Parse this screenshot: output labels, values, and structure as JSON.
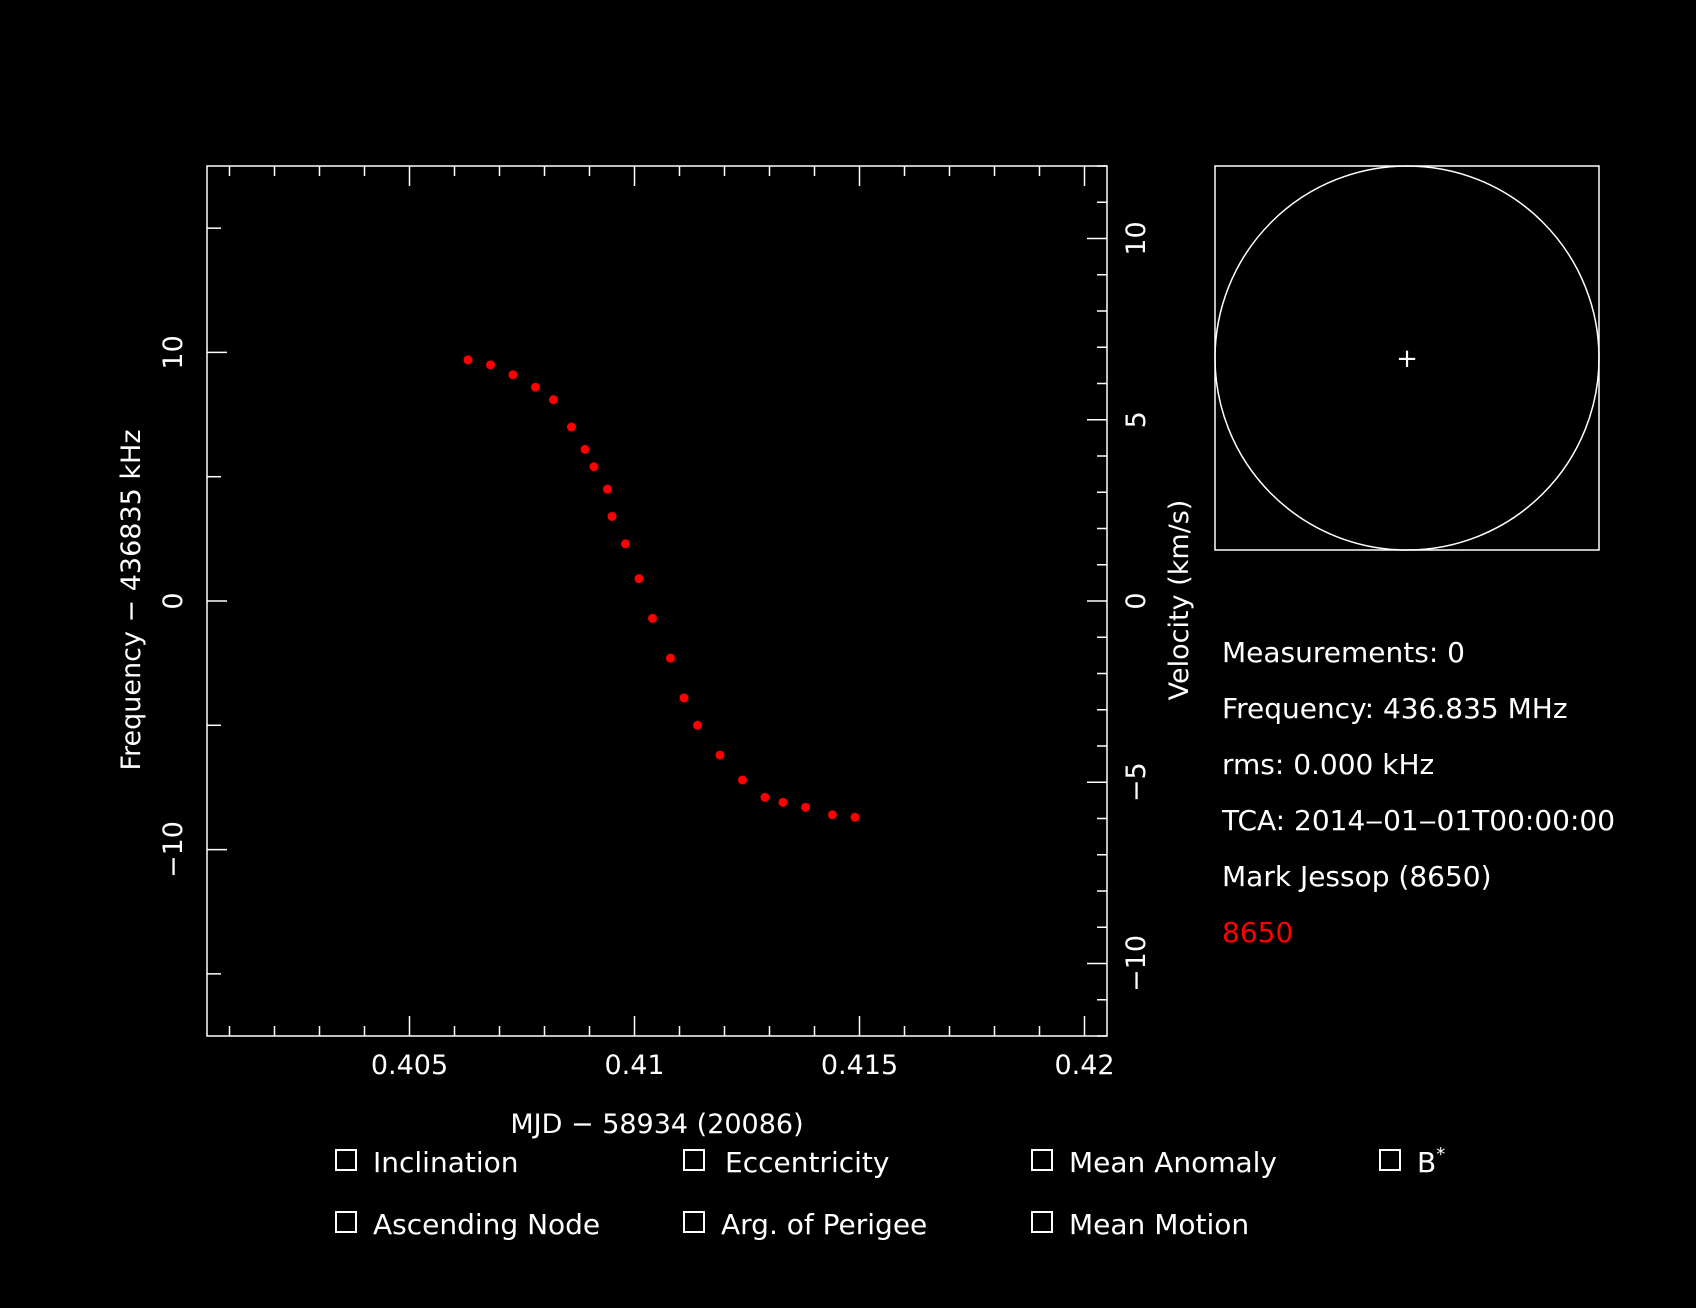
{
  "colors": {
    "background": "#000000",
    "foreground": "#ffffff",
    "accent": "#ff0000"
  },
  "chart_data": {
    "type": "scatter",
    "title": "",
    "xlabel": "MJD − 58934 (20086)",
    "ylabel": "Frequency − 436835 kHz",
    "ylabel_right": "Velocity (km/s)",
    "xlim": [
      0.4005,
      0.4205
    ],
    "ylim": [
      -17.5,
      17.5
    ],
    "ylim_right": [
      -12.0,
      12.0
    ],
    "x_ticks": [
      0.405,
      0.41,
      0.415,
      0.42
    ],
    "x_tick_labels": [
      "0.405",
      "0.41",
      "0.415",
      "0.42"
    ],
    "y_ticks": [
      -10,
      0,
      10
    ],
    "y_tick_labels": [
      "−10",
      "0",
      "10"
    ],
    "y_right_ticks": [
      -10,
      -5,
      0,
      5,
      10
    ],
    "y_right_tick_labels": [
      "−10",
      "−5",
      "0",
      "5",
      "10"
    ],
    "grid": false,
    "series": [
      {
        "name": "8650",
        "color": "#ff0000",
        "x": [
          0.4063,
          0.4068,
          0.4073,
          0.4078,
          0.4082,
          0.4086,
          0.4089,
          0.4091,
          0.4094,
          0.4095,
          0.4098,
          0.4101,
          0.4104,
          0.4108,
          0.4111,
          0.4114,
          0.4119,
          0.4124,
          0.4129,
          0.4133,
          0.4138,
          0.4144,
          0.4149
        ],
        "y": [
          9.7,
          9.5,
          9.1,
          8.6,
          8.1,
          7.0,
          6.1,
          5.4,
          4.5,
          3.4,
          2.3,
          0.9,
          -0.7,
          -2.3,
          -3.9,
          -5.0,
          -6.2,
          -7.2,
          -7.9,
          -8.1,
          -8.3,
          -8.6,
          -8.7
        ]
      }
    ]
  },
  "polar_view": {
    "center_marker": "+"
  },
  "info": {
    "measurements": "Measurements: 0",
    "frequency": "Frequency: 436.835 MHz",
    "rms": "rms: 0.000 kHz",
    "tca": "TCA: 2014‒01‒01T00:00:00",
    "observer": "Mark Jessop (8650)",
    "site_id": "8650"
  },
  "options": [
    {
      "label": "Inclination",
      "sup": "",
      "checked": false
    },
    {
      "label": "Eccentricity",
      "sup": "",
      "checked": false
    },
    {
      "label": "Mean Anomaly",
      "sup": "",
      "checked": false
    },
    {
      "label": "B",
      "sup": "*",
      "checked": false
    },
    {
      "label": "Ascending Node",
      "sup": "",
      "checked": false
    },
    {
      "label": "Arg. of Perigee",
      "sup": "",
      "checked": false
    },
    {
      "label": "Mean Motion",
      "sup": "",
      "checked": false
    }
  ]
}
